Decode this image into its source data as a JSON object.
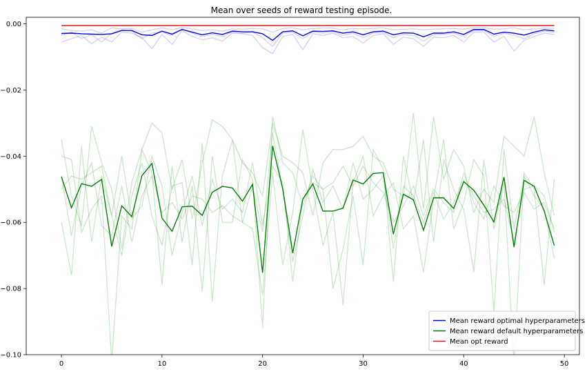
{
  "chart_data": {
    "type": "line",
    "title": "Mean over seeds of reward testing episode.",
    "xlabel": "",
    "ylabel": "",
    "xlim": [
      -3.5,
      51.5
    ],
    "ylim": [
      -0.1,
      0.002
    ],
    "x_ticks": [
      0,
      10,
      20,
      30,
      40,
      50
    ],
    "y_ticks": [
      0.0,
      -0.02,
      -0.04,
      -0.06,
      -0.08,
      -0.1
    ],
    "x_tick_labels": [
      "0",
      "10",
      "20",
      "30",
      "40",
      "50"
    ],
    "y_tick_labels": [
      "0.00",
      "−0.02",
      "−0.04",
      "−0.06",
      "−0.08",
      "−0.10"
    ],
    "grid": false,
    "legend_position": "lower-right",
    "x": [
      0,
      1,
      2,
      3,
      4,
      5,
      6,
      7,
      8,
      9,
      10,
      11,
      12,
      13,
      14,
      15,
      16,
      17,
      18,
      19,
      20,
      21,
      22,
      23,
      24,
      25,
      26,
      27,
      28,
      29,
      30,
      31,
      32,
      33,
      34,
      35,
      36,
      37,
      38,
      39,
      40,
      41,
      42,
      43,
      44,
      45,
      46,
      47,
      48,
      49
    ],
    "series": [
      {
        "name": "Mean reward optimal hyperparameters",
        "color": "#0000ff",
        "values": [
          -0.0029,
          -0.0028,
          -0.003,
          -0.0031,
          -0.0032,
          -0.003,
          -0.002,
          -0.002,
          -0.0033,
          -0.0035,
          -0.0022,
          -0.0031,
          -0.0017,
          -0.0025,
          -0.0033,
          -0.0027,
          -0.0032,
          -0.0022,
          -0.0024,
          -0.0024,
          -0.003,
          -0.005,
          -0.0024,
          -0.0021,
          -0.0036,
          -0.0022,
          -0.0023,
          -0.0021,
          -0.0028,
          -0.0024,
          -0.0033,
          -0.0024,
          -0.0022,
          -0.0033,
          -0.0027,
          -0.0028,
          -0.0039,
          -0.0028,
          -0.0028,
          -0.0024,
          -0.0032,
          -0.0017,
          -0.0017,
          -0.0031,
          -0.0025,
          -0.0028,
          -0.0034,
          -0.0025,
          -0.0018,
          -0.0021
        ]
      },
      {
        "name": "Mean reward default hyperparameters",
        "color": "#008000",
        "values": [
          -0.0462,
          -0.0556,
          -0.0483,
          -0.0491,
          -0.047,
          -0.0673,
          -0.055,
          -0.0583,
          -0.0459,
          -0.0422,
          -0.0587,
          -0.0627,
          -0.0553,
          -0.0551,
          -0.0579,
          -0.0509,
          -0.0491,
          -0.0496,
          -0.0536,
          -0.0485,
          -0.0752,
          -0.0369,
          -0.0498,
          -0.0693,
          -0.053,
          -0.0484,
          -0.0566,
          -0.0566,
          -0.0557,
          -0.0472,
          -0.0484,
          -0.0452,
          -0.045,
          -0.0636,
          -0.0515,
          -0.0532,
          -0.0624,
          -0.0526,
          -0.0526,
          -0.0558,
          -0.0477,
          -0.0503,
          -0.0548,
          -0.0599,
          -0.0463,
          -0.0675,
          -0.0473,
          -0.0491,
          -0.0566,
          -0.067
        ]
      },
      {
        "name": "Mean opt reward",
        "color": "#e31a1c",
        "values": [
          -0.0005,
          -0.0005,
          -0.0005,
          -0.0005,
          -0.0005,
          -0.0005,
          -0.0005,
          -0.0005,
          -0.0005,
          -0.0005,
          -0.0005,
          -0.0005,
          -0.0005,
          -0.0005,
          -0.0005,
          -0.0005,
          -0.0005,
          -0.0005,
          -0.0005,
          -0.0005,
          -0.0005,
          -0.0005,
          -0.0005,
          -0.0005,
          -0.0005,
          -0.0005,
          -0.0005,
          -0.0005,
          -0.0005,
          -0.0005,
          -0.0005,
          -0.0005,
          -0.0005,
          -0.0005,
          -0.0005,
          -0.0005,
          -0.0005,
          -0.0005,
          -0.0005,
          -0.0005,
          -0.0005,
          -0.0005,
          -0.0005,
          -0.0005,
          -0.0005,
          -0.0005,
          -0.0005,
          -0.0005,
          -0.0005,
          -0.0005
        ]
      }
    ],
    "seed_series": [
      {
        "group": "optimal",
        "color": "#0000ff",
        "values": [
          -0.0055,
          -0.0045,
          -0.0035,
          -0.006,
          -0.004,
          -0.0055,
          -0.0025,
          -0.0028,
          -0.0042,
          -0.0075,
          -0.0032,
          -0.0062,
          -0.002,
          -0.0038,
          -0.0048,
          -0.0042,
          -0.0052,
          -0.0028,
          -0.003,
          -0.0035,
          -0.0072,
          -0.009,
          -0.0038,
          -0.0032,
          -0.0078,
          -0.003,
          -0.0035,
          -0.0028,
          -0.0042,
          -0.0038,
          -0.0058,
          -0.0035,
          -0.003,
          -0.0062,
          -0.004,
          -0.0045,
          -0.0068,
          -0.004,
          -0.0042,
          -0.0035,
          -0.0055,
          -0.0025,
          -0.0025,
          -0.0055,
          -0.0038,
          -0.0082,
          -0.005,
          -0.0038,
          -0.0028,
          -0.0032
        ]
      },
      {
        "group": "optimal",
        "color": "#0000ff",
        "values": [
          -0.0015,
          -0.002,
          -0.0022,
          -0.0018,
          -0.0028,
          -0.0012,
          -0.0015,
          -0.0014,
          -0.0025,
          -0.0018,
          -0.0012,
          -0.0018,
          -0.001,
          -0.0015,
          -0.002,
          -0.0018,
          -0.0022,
          -0.0015,
          -0.0016,
          -0.0014,
          -0.0015,
          -0.0025,
          -0.0014,
          -0.0012,
          -0.0018,
          -0.0014,
          -0.0012,
          -0.0013,
          -0.0018,
          -0.0014,
          -0.0015,
          -0.0014,
          -0.0012,
          -0.0018,
          -0.0016,
          -0.0015,
          -0.0018,
          -0.0016,
          -0.0015,
          -0.0014,
          -0.0016,
          -0.0011,
          -0.0011,
          -0.0016,
          -0.0015,
          -0.0012,
          -0.0018,
          -0.0015,
          -0.0012,
          -0.0014
        ]
      },
      {
        "group": "optimal",
        "color": "#0000ff",
        "values": [
          -0.0035,
          -0.0025,
          -0.0045,
          -0.0032,
          -0.0055,
          -0.0028,
          -0.0018,
          -0.0022,
          -0.0045,
          -0.0028,
          -0.0025,
          -0.0035,
          -0.0015,
          -0.0028,
          -0.0038,
          -0.0032,
          -0.0038,
          -0.0025,
          -0.0028,
          -0.0025,
          -0.0042,
          -0.0068,
          -0.0028,
          -0.0025,
          -0.0045,
          -0.0025,
          -0.0028,
          -0.0024,
          -0.0035,
          -0.0028,
          -0.0042,
          -0.0028,
          -0.0026,
          -0.0042,
          -0.0032,
          -0.0035,
          -0.0052,
          -0.0032,
          -0.0032,
          -0.0028,
          -0.0038,
          -0.002,
          -0.002,
          -0.0038,
          -0.0028,
          -0.0035,
          -0.0045,
          -0.003,
          -0.0022,
          -0.0025
        ]
      },
      {
        "group": "default",
        "color": "#008000",
        "values": [
          -0.035,
          -0.052,
          -0.061,
          -0.031,
          -0.042,
          -0.05,
          -0.068,
          -0.048,
          -0.038,
          -0.03,
          -0.033,
          -0.05,
          -0.041,
          -0.059,
          -0.042,
          -0.029,
          -0.031,
          -0.035,
          -0.042,
          -0.045,
          -0.052,
          -0.03,
          -0.04,
          -0.042,
          -0.045,
          -0.058,
          -0.042,
          -0.038,
          -0.038,
          -0.037,
          -0.034,
          -0.04,
          -0.042,
          -0.05,
          -0.052,
          -0.027,
          -0.056,
          -0.028,
          -0.047,
          -0.038,
          -0.043,
          -0.057,
          -0.05,
          -0.054,
          -0.034,
          -0.037,
          -0.04,
          -0.028,
          -0.045,
          -0.058
        ]
      },
      {
        "group": "default",
        "color": "#008000",
        "values": [
          -0.04,
          -0.041,
          -0.063,
          -0.056,
          -0.052,
          -0.102,
          -0.058,
          -0.062,
          -0.038,
          -0.045,
          -0.079,
          -0.043,
          -0.066,
          -0.049,
          -0.081,
          -0.04,
          -0.06,
          -0.06,
          -0.041,
          -0.047,
          -0.092,
          -0.028,
          -0.042,
          -0.045,
          -0.055,
          -0.046,
          -0.05,
          -0.08,
          -0.068,
          -0.052,
          -0.073,
          -0.038,
          -0.044,
          -0.078,
          -0.04,
          -0.054,
          -0.035,
          -0.066,
          -0.041,
          -0.05,
          -0.056,
          -0.075,
          -0.041,
          -0.062,
          -0.048,
          -0.103,
          -0.045,
          -0.05,
          -0.079,
          -0.047
        ]
      },
      {
        "group": "default",
        "color": "#008000",
        "values": [
          -0.06,
          -0.076,
          -0.037,
          -0.066,
          -0.046,
          -0.058,
          -0.07,
          -0.052,
          -0.042,
          -0.058,
          -0.067,
          -0.049,
          -0.048,
          -0.073,
          -0.036,
          -0.084,
          -0.046,
          -0.035,
          -0.06,
          -0.062,
          -0.082,
          -0.045,
          -0.073,
          -0.057,
          -0.032,
          -0.05,
          -0.067,
          -0.057,
          -0.085,
          -0.048,
          -0.04,
          -0.058,
          -0.052,
          -0.048,
          -0.062,
          -0.058,
          -0.075,
          -0.053,
          -0.035,
          -0.062,
          -0.054,
          -0.041,
          -0.046,
          -0.087,
          -0.038,
          -0.062,
          -0.046,
          -0.052,
          -0.056,
          -0.071
        ]
      },
      {
        "group": "default",
        "color": "#008000",
        "values": [
          -0.046,
          -0.064,
          -0.049,
          -0.042,
          -0.061,
          -0.064,
          -0.049,
          -0.066,
          -0.052,
          -0.046,
          -0.057,
          -0.054,
          -0.059,
          -0.052,
          -0.053,
          -0.057,
          -0.055,
          -0.058,
          -0.06,
          -0.049,
          -0.063,
          -0.033,
          -0.05,
          -0.072,
          -0.058,
          -0.044,
          -0.054,
          -0.049,
          -0.056,
          -0.042,
          -0.053,
          -0.05,
          -0.046,
          -0.068,
          -0.049,
          -0.052,
          -0.06,
          -0.051,
          -0.059,
          -0.054,
          -0.047,
          -0.052,
          -0.057,
          -0.056,
          -0.053,
          -0.066,
          -0.05,
          -0.049,
          -0.052,
          -0.063
        ]
      },
      {
        "group": "default",
        "color": "#008000",
        "values": [
          -0.05,
          -0.046,
          -0.047,
          -0.045,
          -0.043,
          -0.058,
          -0.04,
          -0.059,
          -0.055,
          -0.04,
          -0.049,
          -0.07,
          -0.057,
          -0.046,
          -0.061,
          -0.047,
          -0.056,
          -0.053,
          -0.057,
          -0.042,
          -0.061,
          -0.043,
          -0.048,
          -0.078,
          -0.053,
          -0.048,
          -0.05,
          -0.048,
          -0.043,
          -0.049,
          -0.043,
          -0.048,
          -0.051,
          -0.06,
          -0.055,
          -0.049,
          -0.058,
          -0.05,
          -0.054,
          -0.057,
          -0.045,
          -0.054,
          -0.059,
          -0.049,
          -0.055,
          -0.057,
          -0.051,
          -0.056,
          -0.054,
          -0.062
        ]
      }
    ]
  }
}
